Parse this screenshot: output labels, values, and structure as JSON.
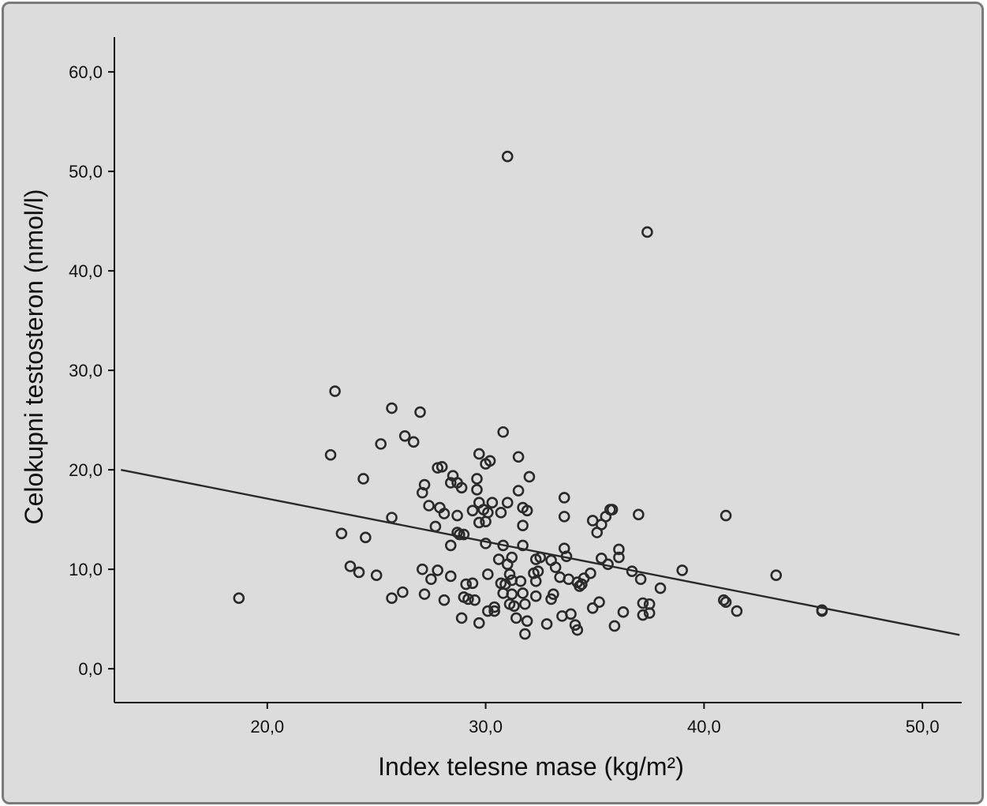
{
  "chart_data": {
    "type": "scatter",
    "title": "",
    "xlabel": "Index telesne mase (kg/m²)",
    "ylabel": "Celokupni testosteron (nmol/l)",
    "xlim": [
      13.0,
      51.8
    ],
    "ylim": [
      -3.4,
      63.5
    ],
    "xticks": [
      20.0,
      30.0,
      40.0,
      50.0
    ],
    "xtick_labels": [
      "20,0",
      "30,0",
      "40,0",
      "50,0"
    ],
    "yticks": [
      0.0,
      10.0,
      20.0,
      30.0,
      40.0,
      50.0,
      60.0
    ],
    "ytick_labels": [
      "0,0",
      "10,0",
      "20,0",
      "30,0",
      "40,0",
      "50,0",
      "60,0"
    ],
    "grid": false,
    "fit_line": {
      "x": [
        13.3,
        51.7
      ],
      "y": [
        20.0,
        3.4
      ]
    },
    "points": [
      {
        "x": 18.7,
        "y": 7.1
      },
      {
        "x": 22.9,
        "y": 21.5
      },
      {
        "x": 23.1,
        "y": 27.9
      },
      {
        "x": 23.4,
        "y": 13.6
      },
      {
        "x": 23.8,
        "y": 10.3
      },
      {
        "x": 24.2,
        "y": 9.7
      },
      {
        "x": 24.4,
        "y": 19.1
      },
      {
        "x": 24.5,
        "y": 13.2
      },
      {
        "x": 25.0,
        "y": 9.4
      },
      {
        "x": 25.2,
        "y": 22.6
      },
      {
        "x": 25.7,
        "y": 26.2
      },
      {
        "x": 25.7,
        "y": 15.2
      },
      {
        "x": 25.7,
        "y": 7.1
      },
      {
        "x": 26.2,
        "y": 7.7
      },
      {
        "x": 26.3,
        "y": 23.4
      },
      {
        "x": 26.7,
        "y": 22.8
      },
      {
        "x": 27.0,
        "y": 25.8
      },
      {
        "x": 27.1,
        "y": 17.7
      },
      {
        "x": 27.1,
        "y": 10.0
      },
      {
        "x": 27.2,
        "y": 18.5
      },
      {
        "x": 27.2,
        "y": 7.5
      },
      {
        "x": 27.4,
        "y": 16.4
      },
      {
        "x": 27.5,
        "y": 9.0
      },
      {
        "x": 27.7,
        "y": 14.3
      },
      {
        "x": 27.8,
        "y": 20.2
      },
      {
        "x": 27.8,
        "y": 9.9
      },
      {
        "x": 27.9,
        "y": 16.2
      },
      {
        "x": 28.0,
        "y": 20.3
      },
      {
        "x": 28.1,
        "y": 15.6
      },
      {
        "x": 28.1,
        "y": 6.9
      },
      {
        "x": 28.4,
        "y": 18.7
      },
      {
        "x": 28.4,
        "y": 12.4
      },
      {
        "x": 28.4,
        "y": 9.3
      },
      {
        "x": 28.5,
        "y": 19.4
      },
      {
        "x": 28.7,
        "y": 18.7
      },
      {
        "x": 28.7,
        "y": 15.4
      },
      {
        "x": 28.7,
        "y": 13.7
      },
      {
        "x": 28.8,
        "y": 13.5
      },
      {
        "x": 28.9,
        "y": 18.2
      },
      {
        "x": 28.9,
        "y": 5.1
      },
      {
        "x": 29.0,
        "y": 13.5
      },
      {
        "x": 29.0,
        "y": 7.2
      },
      {
        "x": 29.1,
        "y": 8.5
      },
      {
        "x": 29.2,
        "y": 7.0
      },
      {
        "x": 29.4,
        "y": 15.9
      },
      {
        "x": 29.4,
        "y": 8.6
      },
      {
        "x": 29.5,
        "y": 6.9
      },
      {
        "x": 29.6,
        "y": 19.1
      },
      {
        "x": 29.6,
        "y": 18.0
      },
      {
        "x": 29.7,
        "y": 21.6
      },
      {
        "x": 29.7,
        "y": 16.7
      },
      {
        "x": 29.7,
        "y": 14.7
      },
      {
        "x": 29.7,
        "y": 4.6
      },
      {
        "x": 29.9,
        "y": 16.0
      },
      {
        "x": 30.0,
        "y": 20.6
      },
      {
        "x": 30.0,
        "y": 14.8
      },
      {
        "x": 30.0,
        "y": 12.6
      },
      {
        "x": 30.1,
        "y": 15.7
      },
      {
        "x": 30.1,
        "y": 9.5
      },
      {
        "x": 30.1,
        "y": 5.8
      },
      {
        "x": 30.2,
        "y": 20.9
      },
      {
        "x": 30.3,
        "y": 16.7
      },
      {
        "x": 30.4,
        "y": 6.2
      },
      {
        "x": 30.4,
        "y": 5.8
      },
      {
        "x": 30.6,
        "y": 11.0
      },
      {
        "x": 30.7,
        "y": 15.7
      },
      {
        "x": 30.7,
        "y": 8.6
      },
      {
        "x": 30.8,
        "y": 23.8
      },
      {
        "x": 30.8,
        "y": 12.4
      },
      {
        "x": 30.8,
        "y": 7.6
      },
      {
        "x": 30.9,
        "y": 8.5
      },
      {
        "x": 31.0,
        "y": 51.5
      },
      {
        "x": 31.0,
        "y": 16.7
      },
      {
        "x": 31.0,
        "y": 10.5
      },
      {
        "x": 31.1,
        "y": 9.5
      },
      {
        "x": 31.1,
        "y": 6.5
      },
      {
        "x": 31.2,
        "y": 11.2
      },
      {
        "x": 31.2,
        "y": 8.9
      },
      {
        "x": 31.2,
        "y": 7.5
      },
      {
        "x": 31.3,
        "y": 6.3
      },
      {
        "x": 31.4,
        "y": 5.1
      },
      {
        "x": 31.5,
        "y": 21.3
      },
      {
        "x": 31.5,
        "y": 17.9
      },
      {
        "x": 31.6,
        "y": 8.8
      },
      {
        "x": 31.7,
        "y": 16.2
      },
      {
        "x": 31.7,
        "y": 14.4
      },
      {
        "x": 31.7,
        "y": 12.4
      },
      {
        "x": 31.7,
        "y": 7.6
      },
      {
        "x": 31.8,
        "y": 6.5
      },
      {
        "x": 31.8,
        "y": 3.5
      },
      {
        "x": 31.9,
        "y": 15.9
      },
      {
        "x": 31.9,
        "y": 4.8
      },
      {
        "x": 32.0,
        "y": 19.3
      },
      {
        "x": 32.2,
        "y": 9.6
      },
      {
        "x": 32.3,
        "y": 11.0
      },
      {
        "x": 32.3,
        "y": 8.8
      },
      {
        "x": 32.3,
        "y": 7.3
      },
      {
        "x": 32.4,
        "y": 9.8
      },
      {
        "x": 32.5,
        "y": 11.2
      },
      {
        "x": 32.8,
        "y": 4.5
      },
      {
        "x": 33.0,
        "y": 10.9
      },
      {
        "x": 33.0,
        "y": 7.0
      },
      {
        "x": 33.1,
        "y": 7.5
      },
      {
        "x": 33.2,
        "y": 10.2
      },
      {
        "x": 33.4,
        "y": 9.2
      },
      {
        "x": 33.5,
        "y": 5.3
      },
      {
        "x": 33.6,
        "y": 17.2
      },
      {
        "x": 33.6,
        "y": 15.3
      },
      {
        "x": 33.6,
        "y": 12.1
      },
      {
        "x": 33.7,
        "y": 11.3
      },
      {
        "x": 33.8,
        "y": 9.0
      },
      {
        "x": 33.9,
        "y": 5.5
      },
      {
        "x": 34.1,
        "y": 4.4
      },
      {
        "x": 34.2,
        "y": 8.7
      },
      {
        "x": 34.2,
        "y": 3.9
      },
      {
        "x": 34.3,
        "y": 8.3
      },
      {
        "x": 34.4,
        "y": 8.5
      },
      {
        "x": 34.5,
        "y": 9.1
      },
      {
        "x": 34.8,
        "y": 9.6
      },
      {
        "x": 34.9,
        "y": 14.9
      },
      {
        "x": 34.9,
        "y": 6.1
      },
      {
        "x": 35.1,
        "y": 13.7
      },
      {
        "x": 35.2,
        "y": 6.7
      },
      {
        "x": 35.3,
        "y": 11.1
      },
      {
        "x": 35.3,
        "y": 14.5
      },
      {
        "x": 35.5,
        "y": 15.3
      },
      {
        "x": 35.6,
        "y": 10.5
      },
      {
        "x": 35.7,
        "y": 16.0
      },
      {
        "x": 35.8,
        "y": 16.0
      },
      {
        "x": 35.9,
        "y": 4.3
      },
      {
        "x": 36.1,
        "y": 12.0
      },
      {
        "x": 36.1,
        "y": 11.2
      },
      {
        "x": 36.3,
        "y": 5.7
      },
      {
        "x": 36.7,
        "y": 9.8
      },
      {
        "x": 37.0,
        "y": 15.5
      },
      {
        "x": 37.1,
        "y": 9.0
      },
      {
        "x": 37.2,
        "y": 6.6
      },
      {
        "x": 37.2,
        "y": 5.4
      },
      {
        "x": 37.4,
        "y": 43.9
      },
      {
        "x": 37.5,
        "y": 6.5
      },
      {
        "x": 37.5,
        "y": 5.6
      },
      {
        "x": 38.0,
        "y": 8.1
      },
      {
        "x": 39.0,
        "y": 9.9
      },
      {
        "x": 40.9,
        "y": 6.9
      },
      {
        "x": 41.0,
        "y": 15.4
      },
      {
        "x": 41.0,
        "y": 6.7
      },
      {
        "x": 41.5,
        "y": 5.8
      },
      {
        "x": 43.3,
        "y": 9.4
      },
      {
        "x": 45.4,
        "y": 5.9
      },
      {
        "x": 45.4,
        "y": 5.8
      }
    ]
  }
}
